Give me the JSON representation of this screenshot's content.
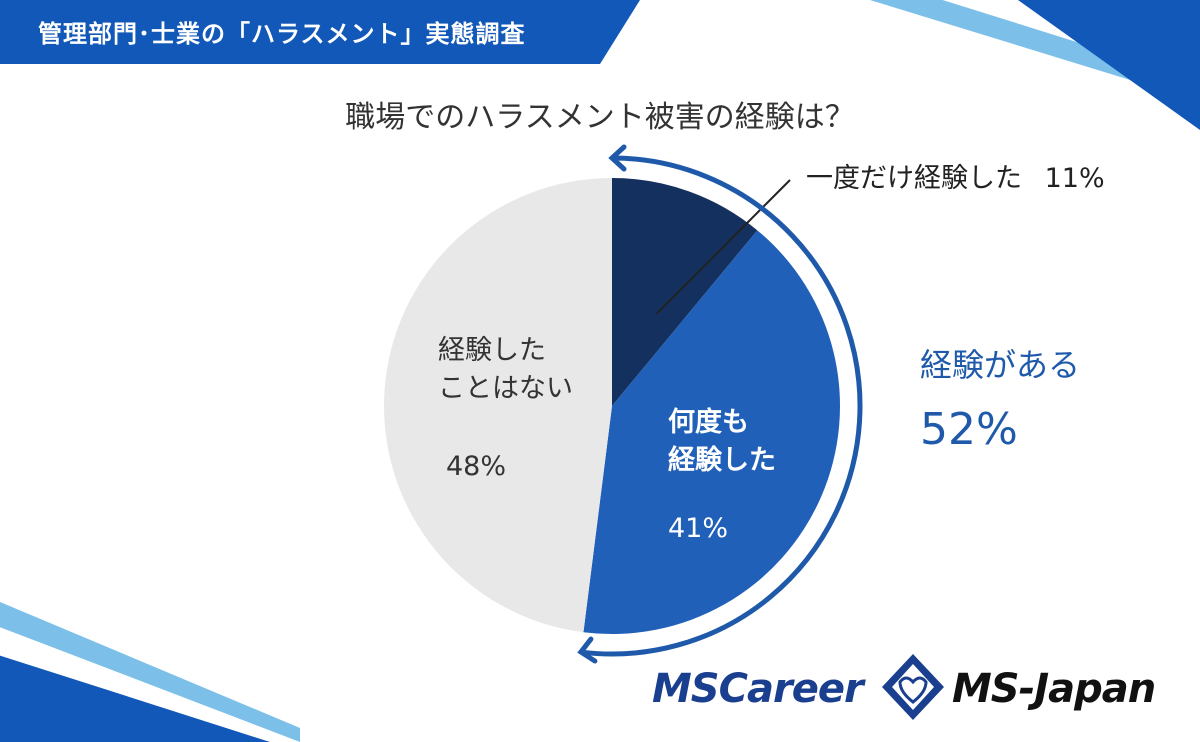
{
  "header": {
    "title": "管理部門･士業の「ハラスメント」実態調査"
  },
  "chart_data": {
    "type": "pie",
    "title": "職場でのハラスメント被害の経験は？",
    "slices": [
      {
        "label": "一度だけ経験した",
        "value": 11,
        "value_label": "11%",
        "color": "#14305f"
      },
      {
        "label_lines": [
          "何度も",
          "経験した"
        ],
        "value": 41,
        "value_label": "41%",
        "color": "#2160b8"
      },
      {
        "label_lines": [
          "経験した",
          "ことはない"
        ],
        "value": 48,
        "value_label": "48%",
        "color": "#e8e8e8"
      }
    ],
    "group_annotation": {
      "label": "経験がある",
      "value": 52,
      "value_label": "52%",
      "color": "#1f5aaa"
    },
    "start_angle": "12 o'clock",
    "direction": "clockwise",
    "legend": "none"
  },
  "logos": {
    "left": "MSCareer",
    "right": "MS-Japan"
  }
}
